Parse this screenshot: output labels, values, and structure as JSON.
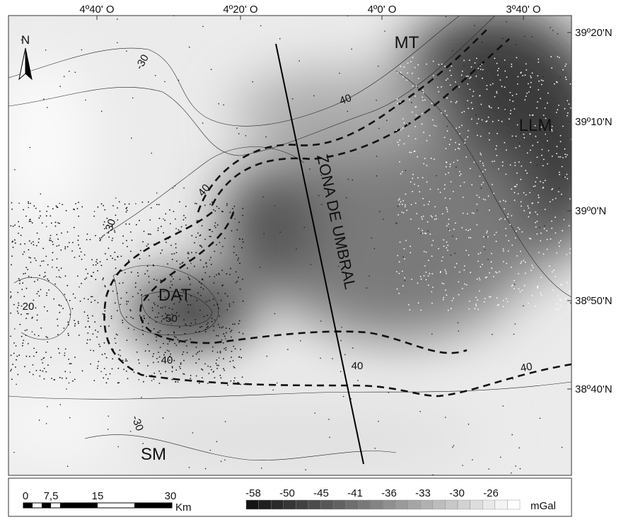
{
  "map": {
    "longitude_labels": [
      "4º40' O",
      "4º20' O",
      "4º0' O",
      "3º40' O"
    ],
    "latitude_labels": [
      "39º20'N",
      "39º10'N",
      "39º0'N",
      "38º50'N",
      "38º40'N"
    ],
    "north": "N",
    "region_labels": [
      "MT",
      "LLM",
      "DAT",
      "SM"
    ],
    "profile_label": "ZONA DE UMBRAL",
    "contour_labels": [
      "-30",
      "40",
      "40",
      "-30",
      "20",
      "-50",
      "40",
      "40",
      "40",
      "-30"
    ]
  },
  "scale_bar": {
    "ticks": [
      "0",
      "7,5",
      "15",
      "30"
    ],
    "unit": "Km"
  },
  "color_scale": {
    "ticks": [
      "-58",
      "-50",
      "-45",
      "-41",
      "-36",
      "-33",
      "-30",
      "-26"
    ],
    "unit": "mGal"
  }
}
